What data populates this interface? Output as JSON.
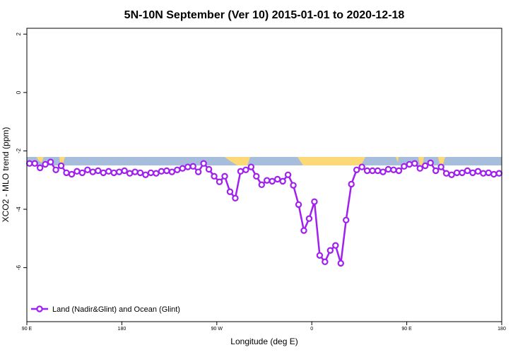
{
  "chart_data": {
    "type": "line",
    "title": "5N-10N September (Ver 10)   2015-01-01 to 2020-12-18",
    "x_label": "Longitude (deg E)",
    "y_label": "XCO2 - MLO trend (ppm)",
    "xlim": [
      90,
      540
    ],
    "ylim": [
      -7.85,
      2.2
    ],
    "xticks": [
      {
        "value": 90,
        "label": "90 E"
      },
      180,
      {
        "value": 270,
        "label": "90 W"
      },
      {
        "value": 360,
        "label": "0"
      },
      {
        "value": 450,
        "label": "90 E"
      },
      {
        "value": 540,
        "label": "180"
      }
    ],
    "yticks": [
      2,
      0,
      -2,
      -4,
      -6
    ],
    "legend": "bottom-left",
    "x": [
      92.5,
      97.5,
      102.5,
      107.5,
      112.5,
      117.5,
      122.5,
      127.5,
      132.5,
      137.5,
      142.5,
      147.5,
      152.5,
      157.5,
      162.5,
      167.5,
      172.5,
      177.5,
      182.5,
      187.5,
      192.5,
      197.5,
      202.5,
      207.5,
      212.5,
      217.5,
      222.5,
      227.5,
      232.5,
      237.5,
      242.5,
      247.5,
      252.5,
      257.5,
      262.5,
      267.5,
      272.5,
      277.5,
      282.5,
      287.5,
      292.5,
      297.5,
      302.5,
      307.5,
      312.5,
      317.5,
      322.5,
      327.5,
      332.5,
      337.5,
      342.5,
      347.5,
      352.5,
      357.5,
      362.5,
      367.5,
      372.5,
      377.5,
      382.5,
      387.5,
      392.5,
      397.5,
      402.5,
      407.5,
      412.5,
      417.5,
      422.5,
      427.5,
      432.5,
      437.5,
      442.5,
      447.5,
      452.5,
      457.5,
      462.5,
      467.5,
      472.5,
      477.5,
      482.5,
      487.5,
      492.5,
      497.5,
      502.5,
      507.5,
      512.5,
      517.5,
      522.5,
      527.5,
      532.5,
      537.5
    ],
    "series": [
      {
        "name": "Land (Nadir&Glint) and Ocean (Glint)",
        "color": "#a020f0",
        "values": [
          -2.43,
          -2.43,
          -2.58,
          -2.46,
          -2.38,
          -2.65,
          -2.51,
          -2.75,
          -2.8,
          -2.7,
          -2.75,
          -2.65,
          -2.72,
          -2.68,
          -2.75,
          -2.7,
          -2.75,
          -2.72,
          -2.68,
          -2.77,
          -2.72,
          -2.75,
          -2.82,
          -2.75,
          -2.77,
          -2.7,
          -2.68,
          -2.72,
          -2.65,
          -2.6,
          -2.55,
          -2.53,
          -2.72,
          -2.43,
          -2.63,
          -2.87,
          -3.06,
          -2.87,
          -3.4,
          -3.62,
          -2.7,
          -2.65,
          -2.55,
          -2.87,
          -3.16,
          -3.01,
          -3.04,
          -2.97,
          -3.04,
          -2.82,
          -3.18,
          -3.84,
          -4.73,
          -4.32,
          -3.74,
          -5.58,
          -5.8,
          -5.41,
          -5.24,
          -5.85,
          -4.37,
          -3.14,
          -2.65,
          -2.55,
          -2.68,
          -2.68,
          -2.68,
          -2.72,
          -2.63,
          -2.65,
          -2.68,
          -2.53,
          -2.46,
          -2.43,
          -2.6,
          -2.51,
          -2.41,
          -2.68,
          -2.55,
          -2.77,
          -2.82,
          -2.75,
          -2.75,
          -2.68,
          -2.75,
          -2.7,
          -2.77,
          -2.75,
          -2.8,
          -2.77
        ]
      }
    ]
  }
}
